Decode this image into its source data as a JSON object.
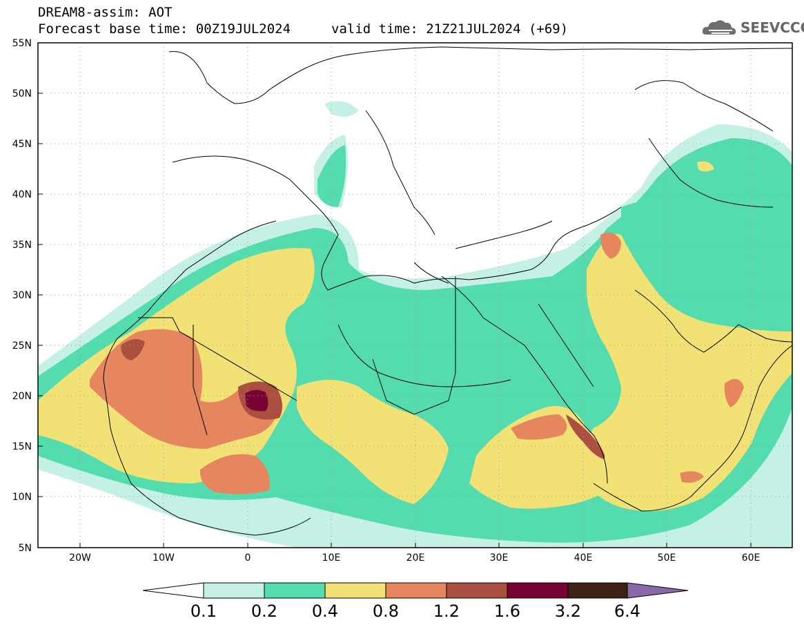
{
  "header": {
    "title": "DREAM8-assim: AOT",
    "base_time": "Forecast base time: 00Z19JUL2024",
    "valid_time": "valid time: 21Z21JUL2024 (+69)"
  },
  "logo": {
    "text": "SEEVCCC",
    "icon": "cloud-icon"
  },
  "axes": {
    "lat_labels": [
      "55N",
      "50N",
      "45N",
      "40N",
      "35N",
      "30N",
      "25N",
      "20N",
      "15N",
      "10N",
      "5N"
    ],
    "lon_labels": [
      "20W",
      "10W",
      "0",
      "10E",
      "20E",
      "30E",
      "40E",
      "50E",
      "60E"
    ],
    "lon_range": [
      -25,
      65
    ],
    "lat_range": [
      5,
      55
    ]
  },
  "colorbar": {
    "labels": [
      "0.1",
      "0.2",
      "0.4",
      "0.8",
      "1.2",
      "1.6",
      "3.2",
      "6.4"
    ],
    "colors": [
      "#c4f0e6",
      "#55dcae",
      "#f2e275",
      "#e5865f",
      "#ab4f41",
      "#7a0335",
      "#3d2213",
      "#8a68a8"
    ]
  }
}
